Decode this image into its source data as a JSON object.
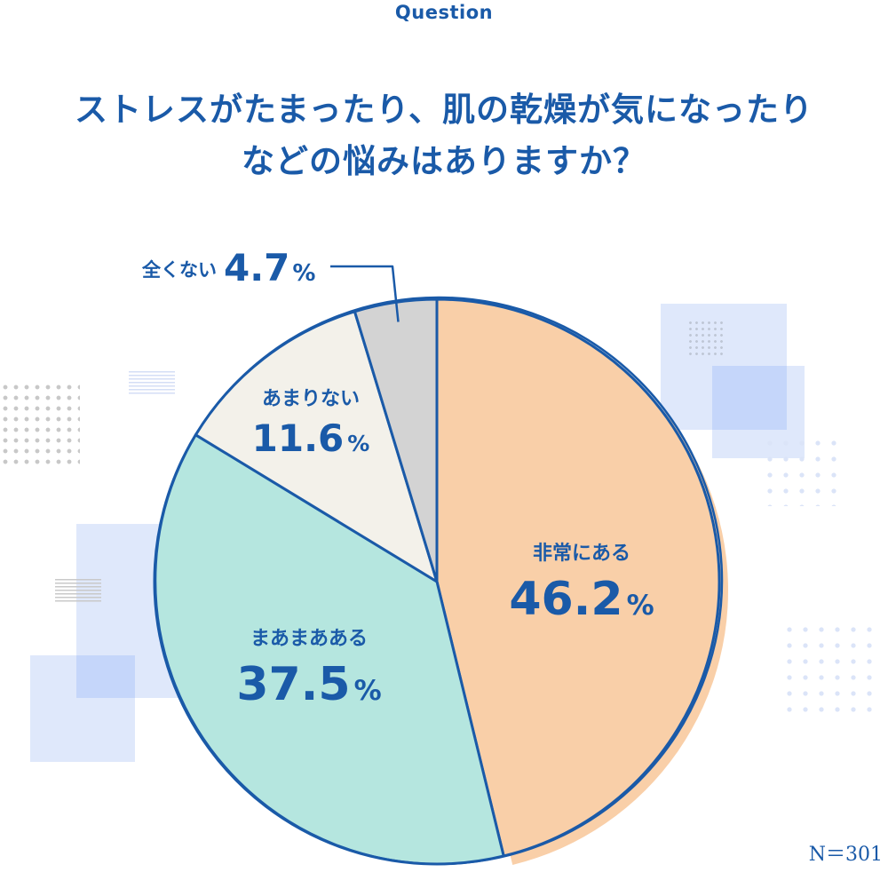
{
  "question_label": "Question",
  "title_lines": [
    "ストレスがたまったり、肌の乾燥が気になったり",
    "などの悩みはありますか？"
  ],
  "sample_size": "N＝301",
  "chart_data": {
    "type": "pie",
    "title": "ストレスがたまったり、肌の乾燥が気になったりなどの悩みはありますか？",
    "unit": "%",
    "start": "top",
    "direction": "clockwise",
    "slices": [
      {
        "label": "非常にある",
        "value": 46.2,
        "display": "46.2",
        "color": "#f9cfa8"
      },
      {
        "label": "まあまあある",
        "value": 37.5,
        "display": "37.5",
        "color": "#b5e6df"
      },
      {
        "label": "あまりない",
        "value": 11.6,
        "display": "11.6",
        "color": "#f3f1ea"
      },
      {
        "label": "全くない",
        "value": 4.7,
        "display": "4.7",
        "color": "#d3d3d3"
      }
    ],
    "colors": {
      "outline": "#1a5aa8",
      "text": "#1a5aa8",
      "shadow": "#f9cfa8"
    }
  }
}
